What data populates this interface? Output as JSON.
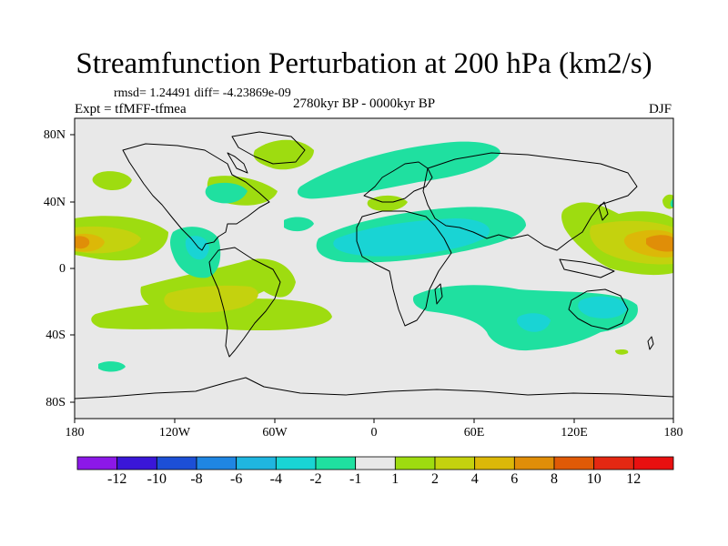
{
  "title": "Streamfunction Perturbation at 200 hPa (km2/s)",
  "stats_text": "rmsd= 1.24491 diff= -4.23869e-09",
  "expt_text": "Expt = tfMFF-tfmea",
  "period_text": "2780kyr BP - 0000kyr BP",
  "season": "DJF",
  "axes": {
    "x_ticks": [
      "180",
      "120W",
      "60W",
      "0",
      "60E",
      "120E",
      "180"
    ],
    "y_ticks": [
      "80N",
      "40N",
      "0",
      "40S",
      "80S"
    ]
  },
  "colorbar": {
    "labels": [
      "-12",
      "-10",
      "-8",
      "-6",
      "-4",
      "-2",
      "-1",
      "1",
      "2",
      "4",
      "6",
      "8",
      "10",
      "12"
    ],
    "colors": [
      "#8c18e8",
      "#3a16d8",
      "#1c4fd6",
      "#1f86e2",
      "#1fb6e0",
      "#19d4d4",
      "#1fe0a0",
      "#e8e8e8",
      "#9edc10",
      "#c4d20e",
      "#dcb808",
      "#e08e08",
      "#e05a06",
      "#e42812",
      "#e81010"
    ]
  },
  "chart_data": {
    "type": "filled-contour-map",
    "variable": "200 hPa streamfunction perturbation",
    "units": "km2/s",
    "contour_levels": [
      -12,
      -10,
      -8,
      -6,
      -4,
      -2,
      -1,
      1,
      2,
      4,
      6,
      8,
      10,
      12
    ],
    "lon_range": [
      -180,
      180
    ],
    "lat_range": [
      -90,
      90
    ]
  }
}
